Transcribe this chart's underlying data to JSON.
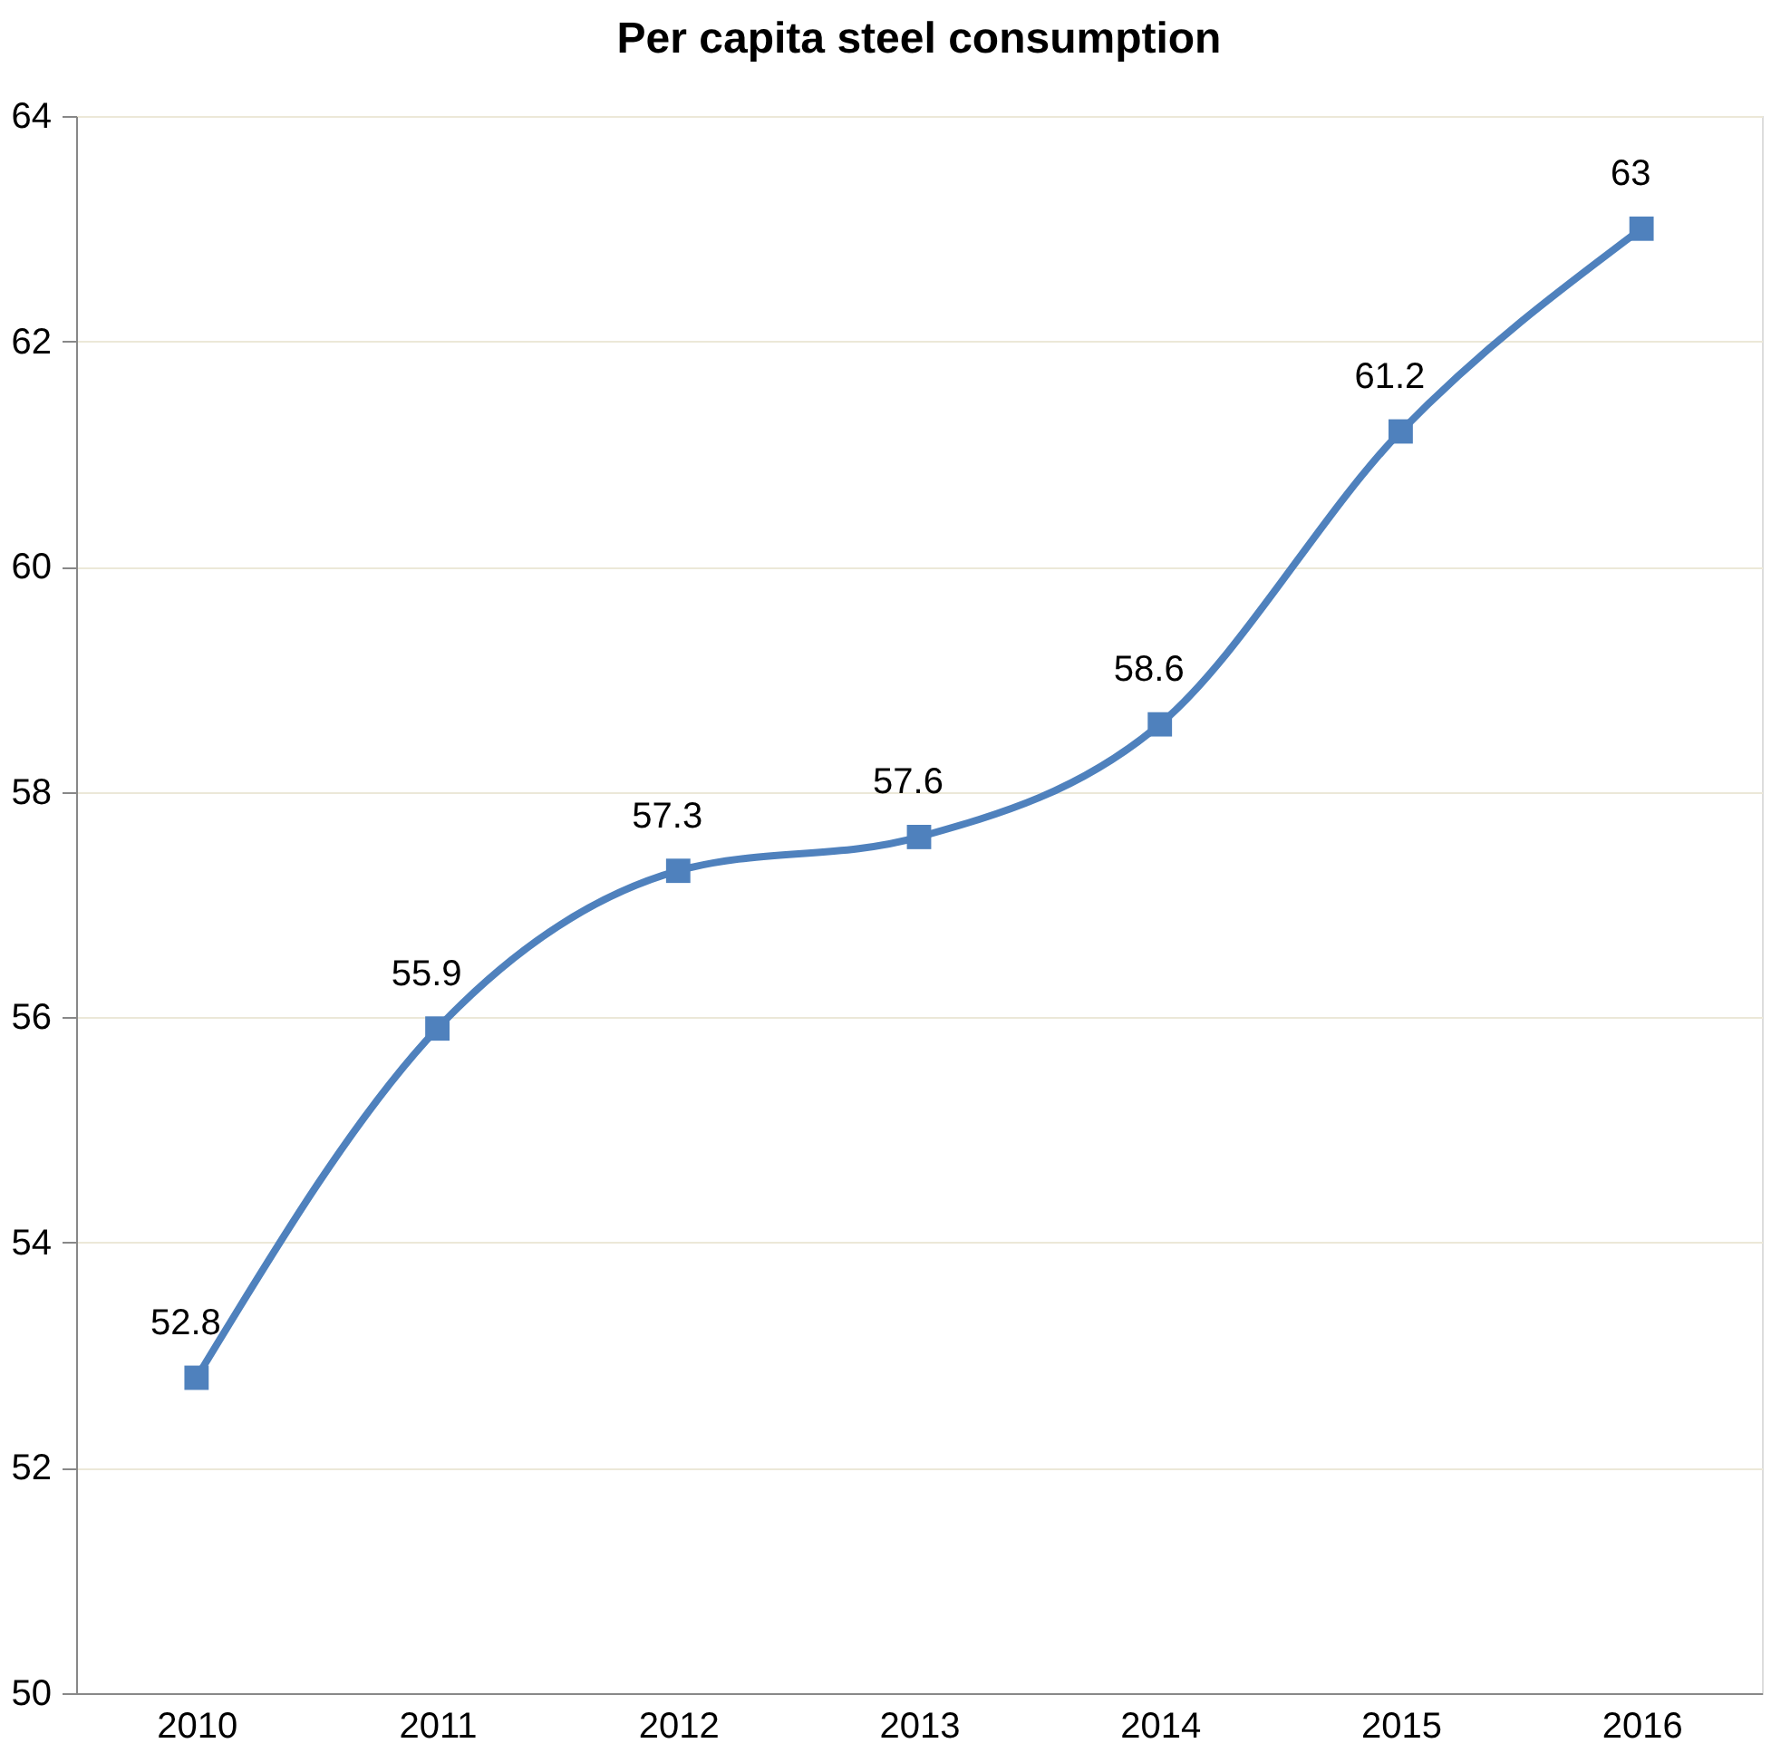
{
  "chart_data": {
    "type": "line",
    "title": "Per capita steel consumption",
    "categories": [
      "2010",
      "2011",
      "2012",
      "2013",
      "2014",
      "2015",
      "2016"
    ],
    "series": [
      {
        "color": "#4f81bd",
        "values": [
          52.8,
          55.9,
          57.3,
          57.6,
          58.6,
          61.2,
          63
        ]
      }
    ],
    "ylim": [
      50,
      64
    ],
    "yticks": [
      50,
      52,
      54,
      56,
      58,
      60,
      62,
      64
    ],
    "grid": "y",
    "marker": "square",
    "line_style": "solid",
    "data_labels": true
  }
}
